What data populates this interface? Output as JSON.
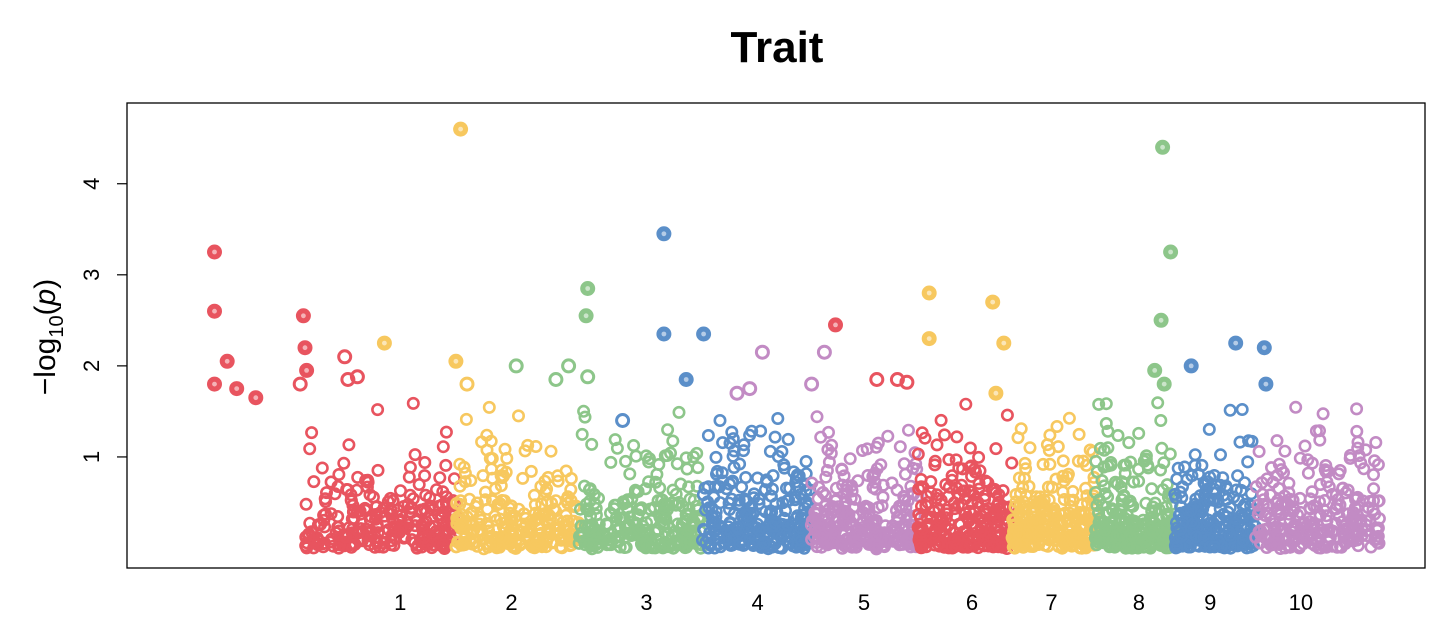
{
  "chart_data": {
    "type": "scatter",
    "title": "Trait",
    "ylabel": "-log10(p)",
    "ylabel_parts": {
      "minus": "−",
      "base": "log",
      "sub": "10",
      "open": "(",
      "var": "p",
      "close": ")"
    },
    "xlabel": "",
    "ylim": [
      0,
      4.7
    ],
    "yticks": [
      "1",
      "2",
      "3",
      "4"
    ],
    "ytick_values": [
      1,
      2,
      3,
      4
    ],
    "x_axis": false,
    "grid": false,
    "legend": "none",
    "point_style": "open-circle",
    "colors": {
      "red": "#e8545f",
      "yellow": "#f7c85f",
      "green": "#8dc68a",
      "blue": "#5b8fc9",
      "purple": "#c28bc4"
    },
    "chromosomes": [
      {
        "label": "1",
        "color": "red",
        "segments": [
          [
            0,
            10
          ],
          [
            135,
            178
          ]
        ]
      },
      {
        "label": "2",
        "color": "yellow",
        "segments": [
          [
            178,
            245
          ]
        ]
      },
      {
        "label": "3",
        "color": "green",
        "segments": [
          [
            245,
            276
          ],
          [
            340,
            393
          ]
        ]
      },
      {
        "label": "4",
        "color": "blue",
        "segments": [
          [
            393,
            487
          ]
        ]
      },
      {
        "label": "5",
        "color": "purple",
        "segments": [
          [
            487,
            540
          ]
        ]
      },
      {
        "label": "6",
        "color": "red",
        "segments": [
          [
            540,
            592
          ],
          [
            650,
            703
          ]
        ]
      },
      {
        "label": "7",
        "color": "yellow",
        "segments": [
          [
            703,
            760
          ]
        ]
      },
      {
        "label": "8",
        "color": "green",
        "segments": [
          [
            760,
            812
          ],
          [
            870,
            935
          ]
        ]
      },
      {
        "label": "9",
        "color": "blue",
        "segments": [
          [
            935,
            990
          ]
        ]
      },
      {
        "label": "10",
        "color": "purple",
        "segments": [
          [
            990,
            1050
          ]
        ]
      }
    ],
    "chrom_label_positions": [
      145,
      215,
      300,
      370,
      437,
      505,
      555,
      610,
      655,
      712
    ],
    "x_range": [
      0,
      765
    ],
    "highlighted_points": [
      {
        "chr": "1",
        "x": 28,
        "y": 3.25,
        "fill": true
      },
      {
        "chr": "1",
        "x": 28,
        "y": 2.6,
        "fill": true
      },
      {
        "chr": "1",
        "x": 36,
        "y": 2.05,
        "fill": true
      },
      {
        "chr": "1",
        "x": 28,
        "y": 1.8,
        "fill": true
      },
      {
        "chr": "1",
        "x": 42,
        "y": 1.75,
        "fill": true
      },
      {
        "chr": "1",
        "x": 54,
        "y": 1.65,
        "fill": true
      },
      {
        "chr": "1",
        "x": 82,
        "y": 1.8,
        "fill": false
      },
      {
        "chr": "1",
        "x": 84,
        "y": 2.55,
        "fill": true
      },
      {
        "chr": "1",
        "x": 85,
        "y": 2.2,
        "fill": true
      },
      {
        "chr": "1",
        "x": 86,
        "y": 1.95,
        "fill": true
      },
      {
        "chr": "1",
        "x": 110,
        "y": 2.1,
        "fill": false
      },
      {
        "chr": "1",
        "x": 112,
        "y": 1.85,
        "fill": false
      },
      {
        "chr": "1",
        "x": 118,
        "y": 1.88,
        "fill": false
      },
      {
        "chr": "2",
        "x": 135,
        "y": 2.25,
        "fill": true
      },
      {
        "chr": "2",
        "x": 183,
        "y": 4.6,
        "fill": true
      },
      {
        "chr": "2",
        "x": 180,
        "y": 2.05,
        "fill": true
      },
      {
        "chr": "2",
        "x": 187,
        "y": 1.8,
        "fill": false
      },
      {
        "chr": "3",
        "x": 218,
        "y": 2.0,
        "fill": false
      },
      {
        "chr": "3",
        "x": 243,
        "y": 1.85,
        "fill": false
      },
      {
        "chr": "3",
        "x": 251,
        "y": 2.0,
        "fill": false
      },
      {
        "chr": "3",
        "x": 263,
        "y": 2.85,
        "fill": true
      },
      {
        "chr": "3",
        "x": 262,
        "y": 2.55,
        "fill": true
      },
      {
        "chr": "3",
        "x": 263,
        "y": 1.88,
        "fill": false
      },
      {
        "chr": "4",
        "x": 311,
        "y": 3.45,
        "fill": true
      },
      {
        "chr": "4",
        "x": 311,
        "y": 2.35,
        "fill": true
      },
      {
        "chr": "4",
        "x": 336,
        "y": 2.35,
        "fill": true
      },
      {
        "chr": "4",
        "x": 325,
        "y": 1.85,
        "fill": true
      },
      {
        "chr": "4",
        "x": 285,
        "y": 1.4,
        "fill": false
      },
      {
        "chr": "5",
        "x": 373,
        "y": 2.15,
        "fill": false
      },
      {
        "chr": "5",
        "x": 365,
        "y": 1.75,
        "fill": false
      },
      {
        "chr": "5",
        "x": 357,
        "y": 1.7,
        "fill": false
      },
      {
        "chr": "5",
        "x": 404,
        "y": 1.8,
        "fill": false
      },
      {
        "chr": "5",
        "x": 412,
        "y": 2.15,
        "fill": false
      },
      {
        "chr": "6",
        "x": 419,
        "y": 2.45,
        "fill": true
      },
      {
        "chr": "6",
        "x": 445,
        "y": 1.85,
        "fill": false
      },
      {
        "chr": "6",
        "x": 458,
        "y": 1.85,
        "fill": false
      },
      {
        "chr": "6",
        "x": 464,
        "y": 1.82,
        "fill": false
      },
      {
        "chr": "7",
        "x": 478,
        "y": 2.8,
        "fill": true
      },
      {
        "chr": "7",
        "x": 478,
        "y": 2.3,
        "fill": true
      },
      {
        "chr": "7",
        "x": 518,
        "y": 2.7,
        "fill": true
      },
      {
        "chr": "7",
        "x": 525,
        "y": 2.25,
        "fill": true
      },
      {
        "chr": "7",
        "x": 520,
        "y": 1.7,
        "fill": true
      },
      {
        "chr": "8",
        "x": 625,
        "y": 4.4,
        "fill": true
      },
      {
        "chr": "8",
        "x": 630,
        "y": 3.25,
        "fill": true
      },
      {
        "chr": "8",
        "x": 624,
        "y": 2.5,
        "fill": true
      },
      {
        "chr": "8",
        "x": 620,
        "y": 1.95,
        "fill": true
      },
      {
        "chr": "8",
        "x": 626,
        "y": 1.8,
        "fill": true
      },
      {
        "chr": "9",
        "x": 643,
        "y": 2.0,
        "fill": true
      },
      {
        "chr": "9",
        "x": 671,
        "y": 2.25,
        "fill": true
      },
      {
        "chr": "9",
        "x": 689,
        "y": 2.2,
        "fill": true
      },
      {
        "chr": "9",
        "x": 690,
        "y": 1.8,
        "fill": true
      }
    ]
  }
}
